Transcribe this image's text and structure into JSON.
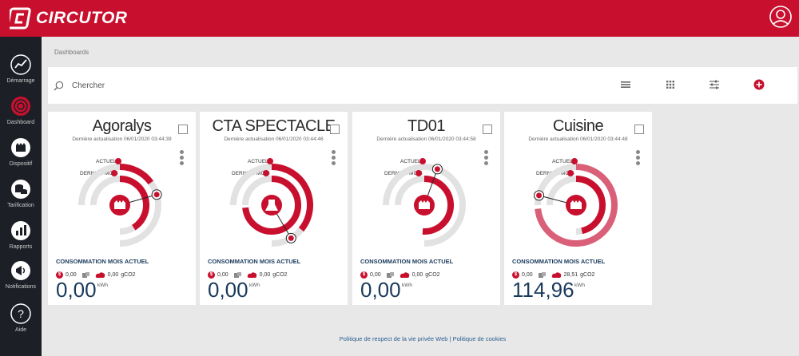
{
  "app": {
    "logo_text": "CIRCUTOR"
  },
  "sidebar": {
    "items": [
      {
        "label": "Démarrage",
        "icon": "chart-line-icon"
      },
      {
        "label": "Dashboard",
        "icon": "dashboard-icon"
      },
      {
        "label": "Dispositif",
        "icon": "meter-icon"
      },
      {
        "label": "Tarification",
        "icon": "coins-icon"
      },
      {
        "label": "Rapports",
        "icon": "bar-chart-icon"
      },
      {
        "label": "Notifications",
        "icon": "megaphone-icon"
      },
      {
        "label": "Aide",
        "icon": "help-icon"
      }
    ]
  },
  "breadcrumb": "Dashboards",
  "search": {
    "placeholder": "Chercher"
  },
  "colors": {
    "brand": "#c8102e",
    "sidebar": "#1c1f26",
    "navy": "#1a3a5c"
  },
  "labels": {
    "actuel": "ACTUEL",
    "dernier_mois": "DERNIER MOIS",
    "conso_title": "CONSOMMATION MOIS ACTUEL",
    "unit": "kWh"
  },
  "cards": [
    {
      "title": "Agoralys",
      "updated": "Dernière actualisation 06/01/2020 03:44:39",
      "cost": "0,00",
      "co2_value": "0,00",
      "co2_unit": "gCO2",
      "value": "0,00",
      "icon": "factory-icon",
      "actuel_fraction": 0.0,
      "dernier_fraction": 0.26,
      "inner_arc": 0.55,
      "outer_arc": 0.2
    },
    {
      "title": "CTA SPECTACLE",
      "updated": "Dernière actualisation 06/01/2020 03:44:46",
      "cost": "0,00",
      "co2_value": "0,00",
      "co2_unit": "gCO2",
      "value": "0,00",
      "icon": "flask-icon",
      "actuel_fraction": 0.0,
      "dernier_fraction": 0.0,
      "inner_arc": 0.98,
      "outer_arc": 0.48
    },
    {
      "title": "TD01",
      "updated": "Dernière actualisation 06/01/2020 03:44:58",
      "cost": "0,00",
      "co2_value": "0,00",
      "co2_unit": "gCO2",
      "value": "0,00",
      "icon": "factory-icon",
      "actuel_fraction": 0.0,
      "dernier_fraction": 0.0,
      "inner_arc": 0.68,
      "outer_arc": 0.0
    },
    {
      "title": "Cuisine",
      "updated": "Dernière actualisation 06/01/2020 03:44:48",
      "cost": "0,00",
      "co2_value": "28,51",
      "co2_unit": "gCO2",
      "value": "114,96",
      "icon": "factory-icon",
      "actuel_fraction": 0.0,
      "dernier_fraction": 0.0,
      "inner_arc": 0.62,
      "outer_arc": 0.98
    }
  ],
  "footer": {
    "privacy": "Politique de respect de la vie privée Web",
    "separator": " | ",
    "cookies": "Politique de cookies"
  }
}
